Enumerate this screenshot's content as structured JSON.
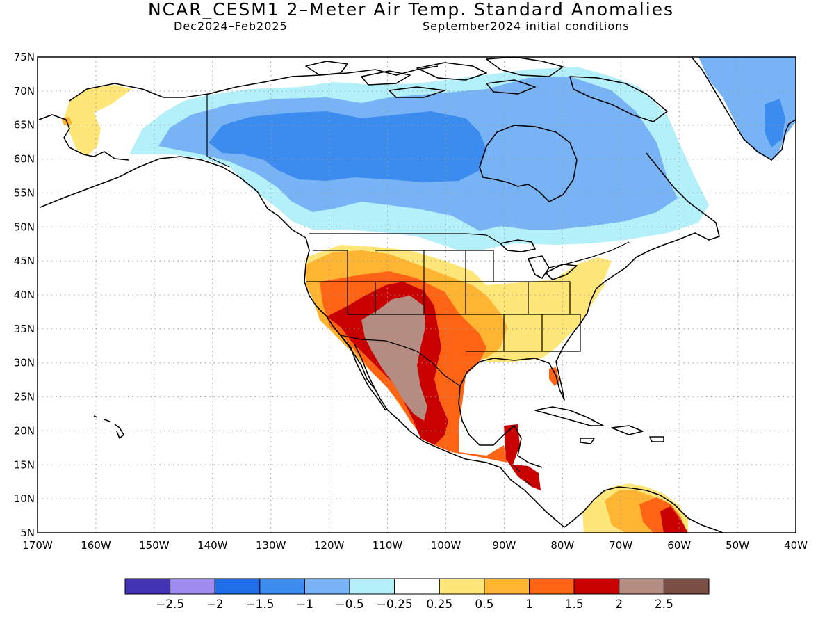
{
  "title": "NCAR_CESM1 2–Meter Air Temp. Standard Anomalies",
  "subtitle_left": "Dec2024–Feb2025",
  "subtitle_right": "September2024 initial conditions",
  "colors": {
    "land_outline": "#000000",
    "grid": "#9a9a9a",
    "frame": "#000000"
  },
  "map": {
    "lon_range": [
      -170,
      -40
    ],
    "lat_range": [
      5,
      75
    ],
    "lat_ticks": [
      "75N",
      "70N",
      "65N",
      "60N",
      "55N",
      "50N",
      "45N",
      "40N",
      "35N",
      "30N",
      "25N",
      "20N",
      "15N",
      "10N",
      "5N"
    ],
    "lon_ticks": [
      "170W",
      "160W",
      "150W",
      "140W",
      "130W",
      "120W",
      "110W",
      "100W",
      "90W",
      "80W",
      "70W",
      "60W",
      "50W",
      "40W"
    ]
  },
  "colorbar": {
    "colors": [
      "#4232b4",
      "#a08cf0",
      "#1e6ee6",
      "#3c8cf0",
      "#78b4f5",
      "#b4f0fa",
      "#ffffff",
      "#ffe678",
      "#ffb432",
      "#ff6414",
      "#c80000",
      "#b48c82",
      "#7a5046"
    ],
    "labels": [
      "−2.5",
      "−2",
      "−1.5",
      "−1",
      "−0.5",
      "−0.25",
      "0.25",
      "0.5",
      "1",
      "1.5",
      "2",
      "2.5"
    ]
  }
}
